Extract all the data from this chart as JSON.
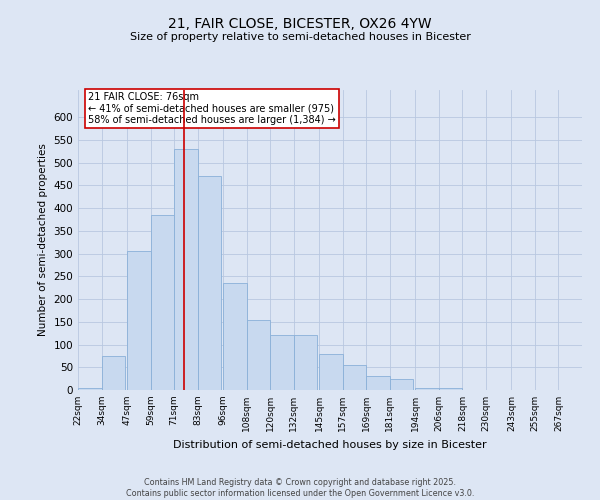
{
  "title_line1": "21, FAIR CLOSE, BICESTER, OX26 4YW",
  "title_line2": "Size of property relative to semi-detached houses in Bicester",
  "xlabel": "Distribution of semi-detached houses by size in Bicester",
  "ylabel": "Number of semi-detached properties",
  "bins": [
    "22sqm",
    "34sqm",
    "47sqm",
    "59sqm",
    "71sqm",
    "83sqm",
    "96sqm",
    "108sqm",
    "120sqm",
    "132sqm",
    "145sqm",
    "157sqm",
    "169sqm",
    "181sqm",
    "194sqm",
    "206sqm",
    "218sqm",
    "230sqm",
    "243sqm",
    "255sqm",
    "267sqm"
  ],
  "bin_left_edges": [
    22,
    34,
    47,
    59,
    71,
    83,
    96,
    108,
    120,
    132,
    145,
    157,
    169,
    181,
    194,
    206,
    218,
    230,
    243,
    255,
    267
  ],
  "bin_width": 12,
  "bar_heights": [
    5,
    75,
    305,
    385,
    530,
    470,
    235,
    155,
    120,
    120,
    80,
    55,
    30,
    25,
    5,
    5,
    1,
    1,
    0,
    0,
    1
  ],
  "bar_color": "#c8d9ef",
  "bar_edgecolor": "#8ab0d8",
  "property_size": 76,
  "vline_color": "#cc0000",
  "annotation_title": "21 FAIR CLOSE: 76sqm",
  "annotation_line1": "← 41% of semi-detached houses are smaller (975)",
  "annotation_line2": "58% of semi-detached houses are larger (1,384) →",
  "annotation_box_facecolor": "#ffffff",
  "annotation_box_edgecolor": "#cc0000",
  "ylim": [
    0,
    660
  ],
  "yticks": [
    0,
    50,
    100,
    150,
    200,
    250,
    300,
    350,
    400,
    450,
    500,
    550,
    600
  ],
  "grid_color": "#b8c8e0",
  "background_color": "#dde6f4",
  "footer_line1": "Contains HM Land Registry data © Crown copyright and database right 2025.",
  "footer_line2": "Contains public sector information licensed under the Open Government Licence v3.0."
}
